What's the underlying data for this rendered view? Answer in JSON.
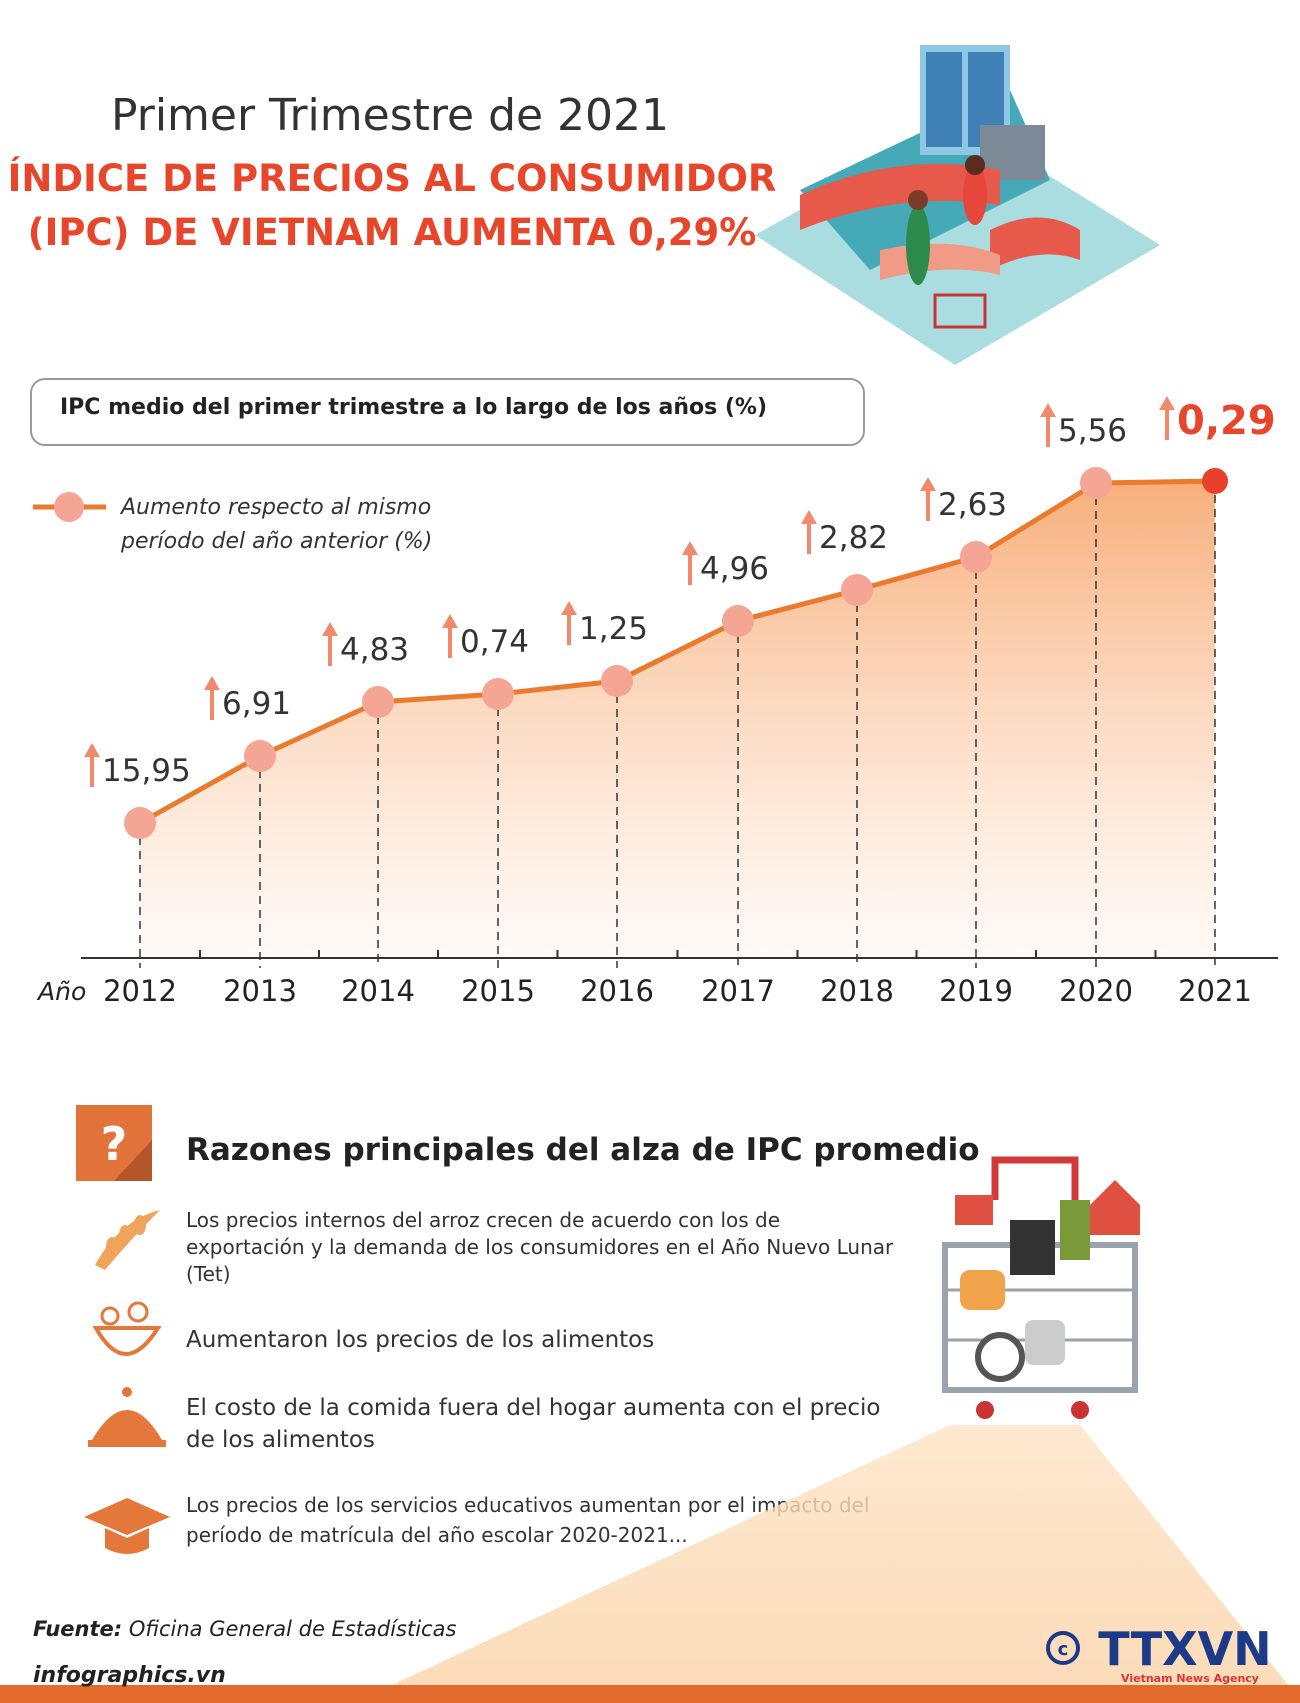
{
  "header": {
    "title": "Primer Trimestre de 2021",
    "headline": [
      "ÍNDICE DE PRECIOS AL CONSUMIDOR",
      "(IPC) DE VIETNAM AUMENTA 0,29%"
    ]
  },
  "chart": {
    "subtitle": "IPC medio del primer trimestre a lo largo de los años (%)",
    "legend": [
      "Aumento respecto al mismo",
      "período del año anterior (%)"
    ],
    "x_label": "Año",
    "years": [
      "2012",
      "2013",
      "2014",
      "2015",
      "2016",
      "2017",
      "2018",
      "2019",
      "2020",
      "2021"
    ],
    "values": [
      "15,95",
      "6,91",
      "4,83",
      "0,74",
      "1,25",
      "4,96",
      "2,82",
      "2,63",
      "5,56",
      "0,29"
    ]
  },
  "reasons": {
    "title": "Razones principales del alza de IPC promedio",
    "items": [
      [
        "Los precios internos del arroz crecen de acuerdo con los de",
        "exportación y la demanda de los consumidores en el Año Nuevo Lunar",
        "(Tet)"
      ],
      [
        "Aumentaron los precios de los alimentos"
      ],
      [
        "El costo de la comida fuera del hogar aumenta con el precio",
        "de los alimentos"
      ],
      [
        "Los precios de los servicios educativos aumentan por el impacto del",
        "período de matrícula del año escolar 2020-2021..."
      ]
    ]
  },
  "footer": {
    "source_label": "Fuente:",
    "source": "Oficina General de Estadísticas",
    "site": "infographics.vn",
    "agency": "TTXVN",
    "agency_sub": "Vietnam News Agency"
  }
}
